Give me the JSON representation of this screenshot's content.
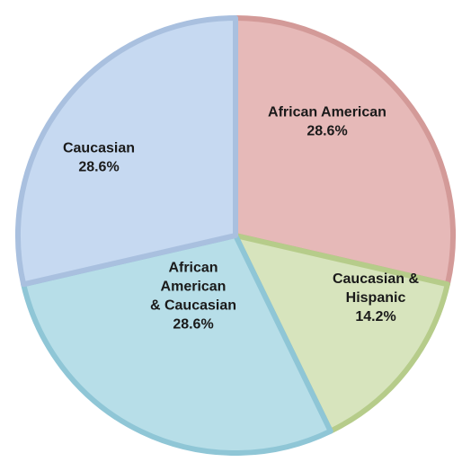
{
  "chart_data": {
    "type": "pie",
    "title": "",
    "slices": [
      {
        "label_lines": [
          "African American",
          "28.6%"
        ],
        "category": "African American",
        "value": 28.6,
        "color": "#e6b9b8",
        "stroke": "#d39a98"
      },
      {
        "label_lines": [
          "Caucasian &",
          "Hispanic",
          "14.2%"
        ],
        "category": "Caucasian & Hispanic",
        "value": 14.2,
        "color": "#d7e4bd",
        "stroke": "#b6cc8a"
      },
      {
        "label_lines": [
          "African",
          "American",
          "& Caucasian",
          "28.6%"
        ],
        "category": "African American & Caucasian",
        "value": 28.6,
        "color": "#b7dee8",
        "stroke": "#8fc6d6"
      },
      {
        "label_lines": [
          "Caucasian",
          "28.6%"
        ],
        "category": "Caucasian",
        "value": 28.6,
        "color": "#c6d9f1",
        "stroke": "#a9c0df"
      }
    ]
  }
}
